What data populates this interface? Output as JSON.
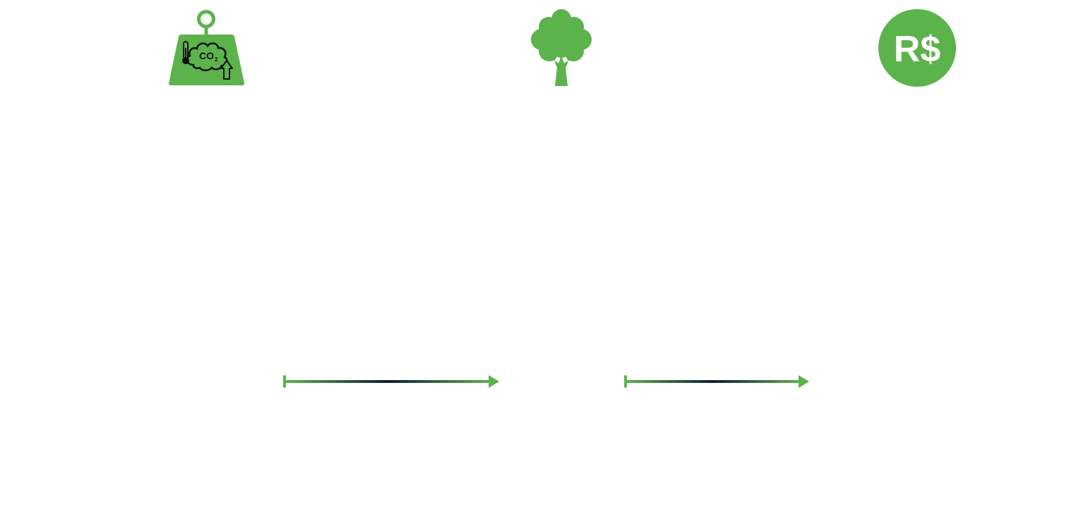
{
  "colors": {
    "green": "#5cb34b",
    "ink": "#111111",
    "arrow_mid": "#0e1e35",
    "background": "#ffffff"
  },
  "icons": {
    "co2_weight": {
      "icon": "co2-weight-icon",
      "label_main": "CO",
      "label_sub": "2"
    },
    "tree": {
      "icon": "tree-icon"
    },
    "currency": {
      "icon": "brazilian-real-coin-icon",
      "symbol": "R$"
    }
  },
  "arrows": [
    {
      "icon": "right-arrow-icon"
    },
    {
      "icon": "right-arrow-icon"
    }
  ]
}
